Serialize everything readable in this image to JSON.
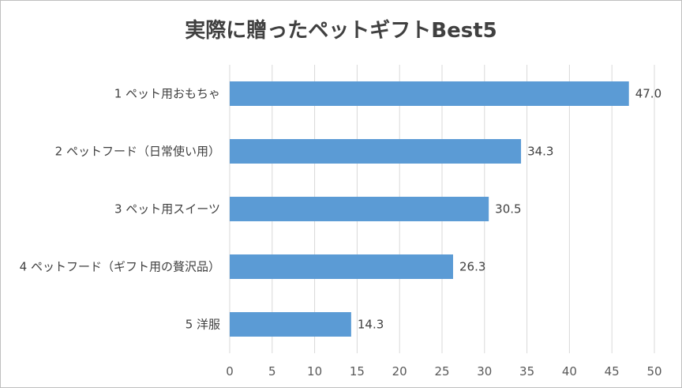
{
  "chart_data": {
    "type": "bar",
    "orientation": "horizontal",
    "title": "実際に贈ったペットギフトBest5",
    "categories": [
      "1 ペット用おもちゃ",
      "2 ペットフード（日常使い用）",
      "3 ペット用スイーツ",
      "4 ペットフード（ギフト用の贅沢品）",
      "5 洋服"
    ],
    "values": [
      47.0,
      34.3,
      30.5,
      26.3,
      14.3
    ],
    "value_labels": [
      "47.0",
      "34.3",
      "30.5",
      "26.3",
      "14.3"
    ],
    "xlim": [
      0,
      50
    ],
    "x_ticks": [
      0,
      5,
      10,
      15,
      20,
      25,
      30,
      35,
      40,
      45,
      50
    ],
    "xlabel": "",
    "ylabel": "",
    "grid": true,
    "bar_color": "#5b9bd5",
    "grid_color": "#d9d9d9"
  }
}
